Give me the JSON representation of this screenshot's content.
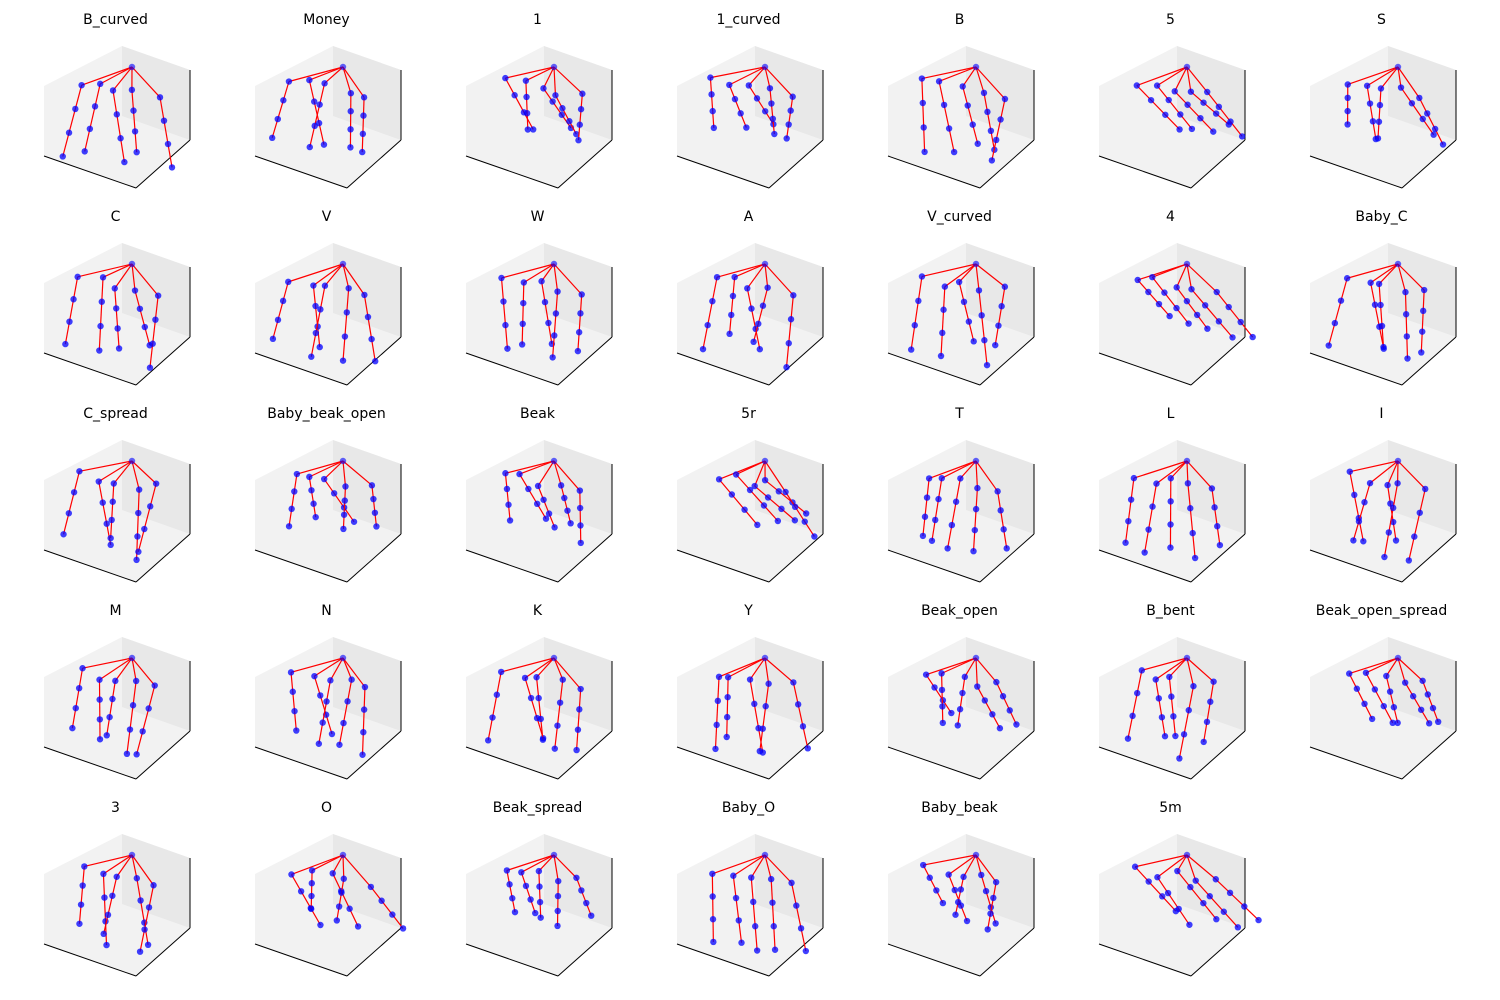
{
  "figure": {
    "rows": 5,
    "cols": 7,
    "colors": {
      "bone": "#ff0000",
      "joint": "#0000ff",
      "pane": "#f2f2f2",
      "pane_dark": "#e8e8e8",
      "axis": "#000000"
    }
  },
  "chart_data": {
    "type": "3d-scatter",
    "description_of_marks": "per-panel hand skeleton: 21 joints (blue points) connected by bones (red lines) from a wrist joint to five fingers",
    "panels": [
      {
        "title": "B_curved",
        "shape": "curved"
      },
      {
        "title": "Money",
        "shape": "money"
      },
      {
        "title": "1",
        "shape": "one"
      },
      {
        "title": "1_curved",
        "shape": "one_curved"
      },
      {
        "title": "B",
        "shape": "flat"
      },
      {
        "title": "5",
        "shape": "five"
      },
      {
        "title": "S",
        "shape": "fist"
      },
      {
        "title": "C",
        "shape": "c"
      },
      {
        "title": "V",
        "shape": "v"
      },
      {
        "title": "W",
        "shape": "w"
      },
      {
        "title": "A",
        "shape": "a"
      },
      {
        "title": "V_curved",
        "shape": "v_curved"
      },
      {
        "title": "4",
        "shape": "four"
      },
      {
        "title": "Baby_C",
        "shape": "baby_c"
      },
      {
        "title": "C_spread",
        "shape": "c_spread"
      },
      {
        "title": "Baby_beak_open",
        "shape": "beak_open"
      },
      {
        "title": "Beak",
        "shape": "beak"
      },
      {
        "title": "5r",
        "shape": "five_r"
      },
      {
        "title": "T",
        "shape": "t"
      },
      {
        "title": "L",
        "shape": "l"
      },
      {
        "title": "I",
        "shape": "i"
      },
      {
        "title": "M",
        "shape": "m"
      },
      {
        "title": "N",
        "shape": "n"
      },
      {
        "title": "K",
        "shape": "k"
      },
      {
        "title": "Y",
        "shape": "y"
      },
      {
        "title": "Beak_open",
        "shape": "beak_open2"
      },
      {
        "title": "B_bent",
        "shape": "b_bent"
      },
      {
        "title": "Beak_open_spread",
        "shape": "beak_spread"
      },
      {
        "title": "3",
        "shape": "three"
      },
      {
        "title": "O",
        "shape": "o"
      },
      {
        "title": "Beak_spread",
        "shape": "beak_spread2"
      },
      {
        "title": "Baby_O",
        "shape": "baby_o"
      },
      {
        "title": "Baby_beak",
        "shape": "baby_beak"
      },
      {
        "title": "5m",
        "shape": "five_m"
      }
    ]
  }
}
